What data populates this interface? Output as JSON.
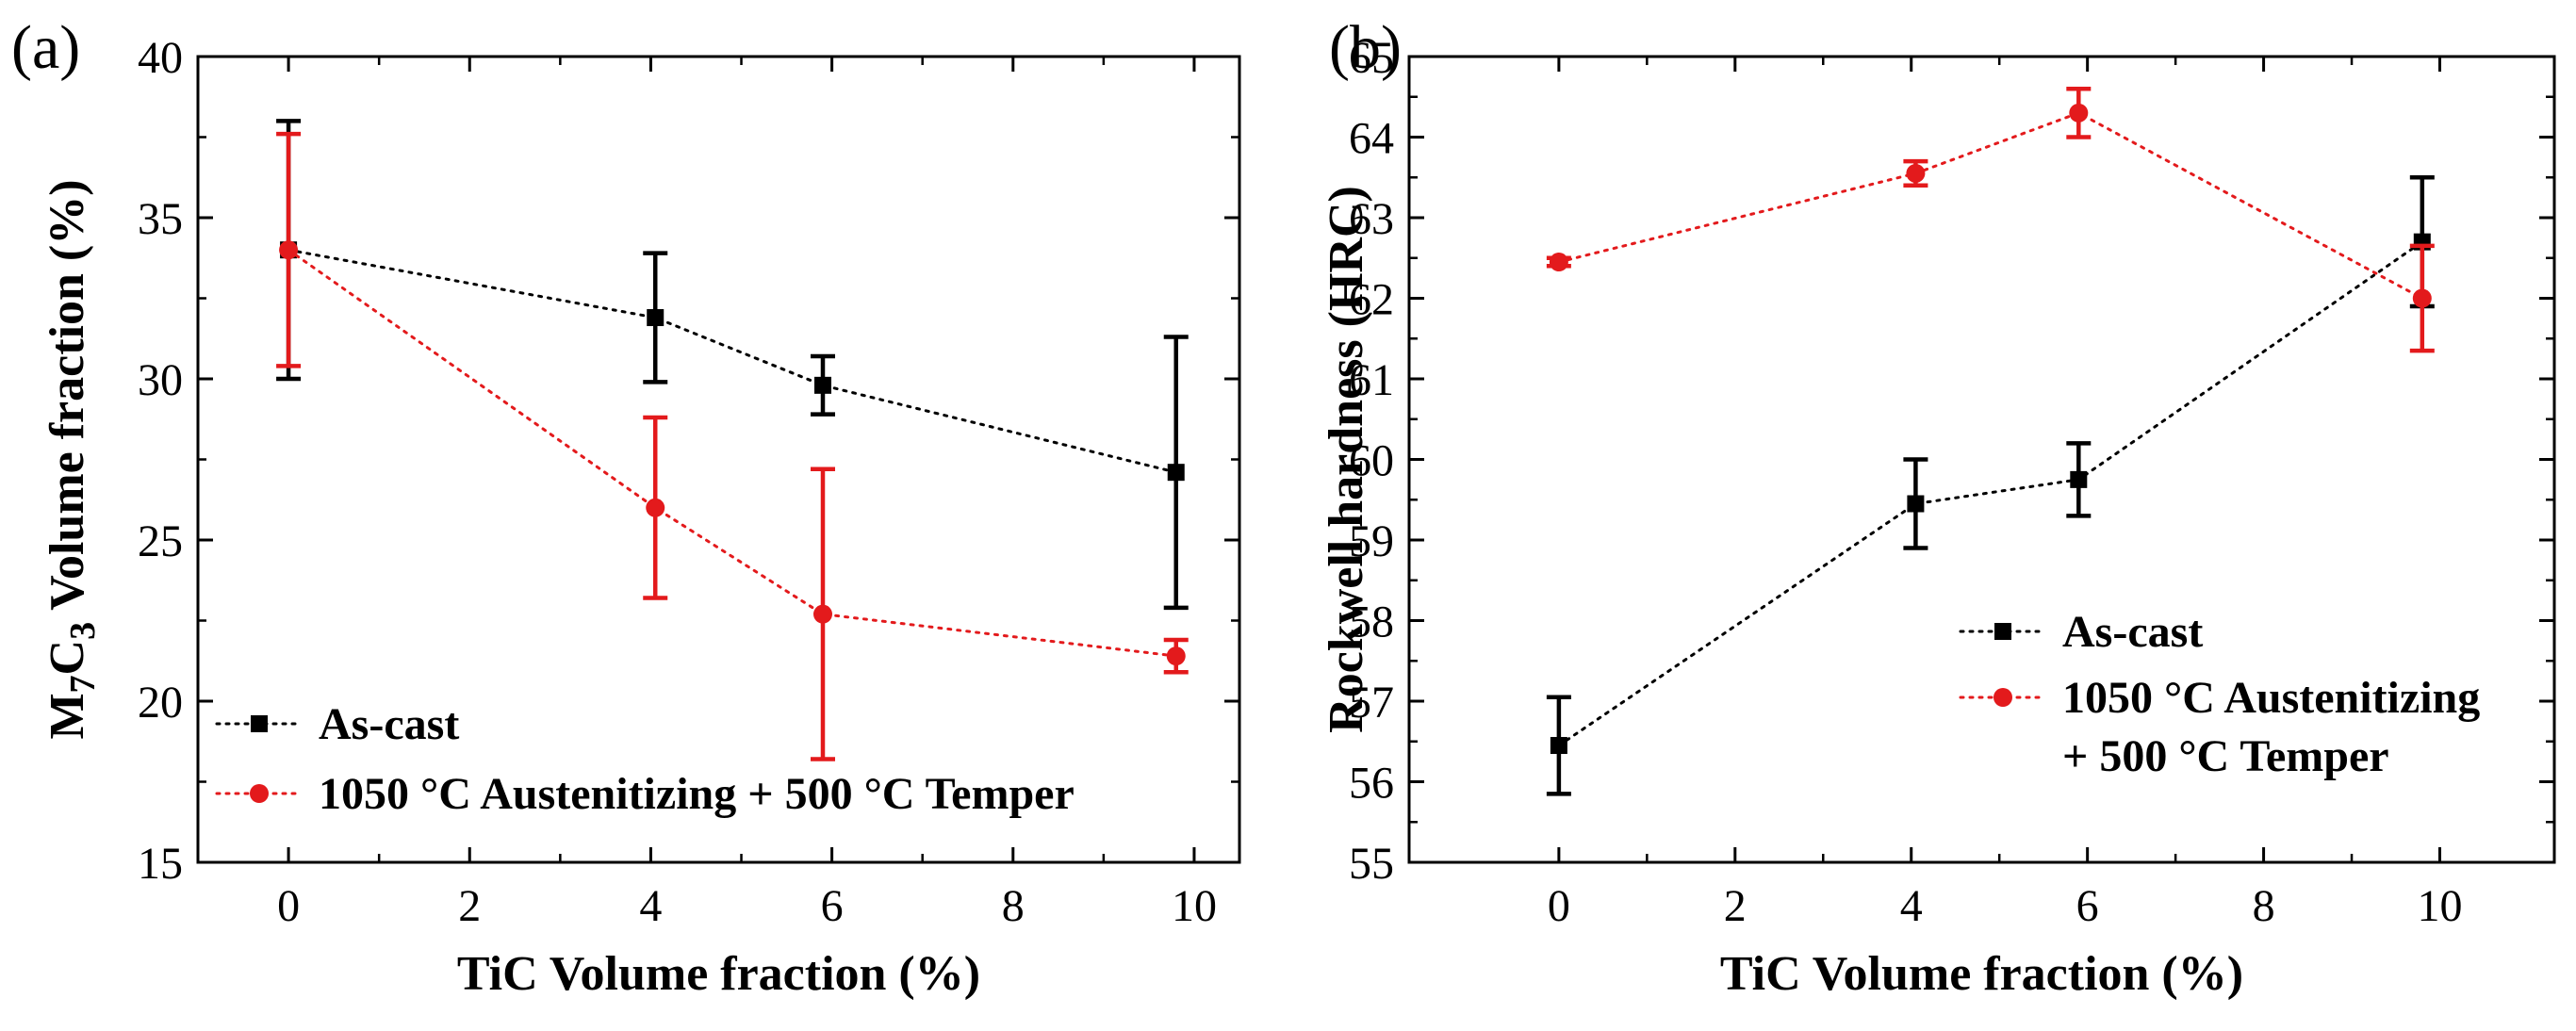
{
  "chart_data": [
    {
      "type": "line",
      "panel_label": "(a)",
      "title": "",
      "xlabel": "TiC Volume fraction (%)",
      "ylabel_prefix": "M",
      "ylabel_sub1": "7",
      "ylabel_mid": "C",
      "ylabel_sub2": "3",
      "ylabel_suffix": " Volume fraction (%)",
      "xlim": [
        -1,
        10.5
      ],
      "ylim": [
        15,
        40
      ],
      "xticks": [
        0,
        2,
        4,
        6,
        8,
        10
      ],
      "yticks": [
        15,
        20,
        25,
        30,
        35,
        40
      ],
      "xtick_labels": [
        "0",
        "2",
        "4",
        "6",
        "8",
        "10"
      ],
      "ytick_labels": [
        "15",
        "20",
        "25",
        "30",
        "35",
        "40"
      ],
      "legend_position": "bottom-left",
      "series": [
        {
          "name": "As-cast",
          "legend_lines": [
            "As-cast"
          ],
          "color": "#000000",
          "marker": "square",
          "x": [
            0,
            4.05,
            5.9,
            9.8
          ],
          "y": [
            34.0,
            31.9,
            29.8,
            27.1
          ],
          "err": [
            4.0,
            2.0,
            0.9,
            4.2
          ]
        },
        {
          "name": "1050 °C Austenitizing + 500 °C Temper",
          "legend_lines": [
            "1050 °C Austenitizing + 500 °C Temper"
          ],
          "color": "#e31a1c",
          "marker": "circle",
          "x": [
            0,
            4.05,
            5.9,
            9.8
          ],
          "y": [
            34.0,
            26.0,
            22.7,
            21.4
          ],
          "err": [
            3.6,
            2.8,
            4.5,
            0.5
          ]
        }
      ]
    },
    {
      "type": "line",
      "panel_label": "(b)",
      "title": "",
      "xlabel": "TiC Volume fraction (%)",
      "ylabel": "Rockwell hardness (HRC)",
      "xlim": [
        -1.7,
        11.3
      ],
      "ylim": [
        55,
        65
      ],
      "xticks": [
        0,
        2,
        4,
        6,
        8,
        10
      ],
      "yticks": [
        55,
        56,
        57,
        58,
        59,
        60,
        61,
        62,
        63,
        64,
        65
      ],
      "xtick_labels": [
        "0",
        "2",
        "4",
        "6",
        "8",
        "10"
      ],
      "ytick_labels": [
        "55",
        "56",
        "57",
        "58",
        "59",
        "60",
        "61",
        "62",
        "63",
        "64",
        "65"
      ],
      "legend_position": "center-right",
      "series": [
        {
          "name": "As-cast",
          "legend_lines": [
            "As-cast"
          ],
          "color": "#000000",
          "marker": "square",
          "x": [
            0,
            4.05,
            5.9,
            9.8
          ],
          "y": [
            56.45,
            59.45,
            59.75,
            62.7
          ],
          "err": [
            0.6,
            0.55,
            0.45,
            0.8
          ]
        },
        {
          "name": "1050 °C Austenitizing + 500 °C Temper",
          "legend_lines": [
            "1050 °C Austenitizing",
            "+ 500 °C Temper"
          ],
          "color": "#e31a1c",
          "marker": "circle",
          "x": [
            0,
            4.05,
            5.9,
            9.8
          ],
          "y": [
            62.45,
            63.55,
            64.3,
            62.0
          ],
          "err": [
            0.05,
            0.15,
            0.3,
            0.65
          ]
        }
      ]
    }
  ]
}
